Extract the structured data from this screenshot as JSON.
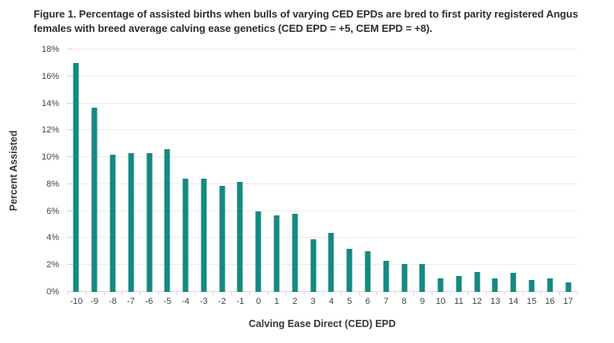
{
  "figure": {
    "caption": "Figure 1. Percentage of assisted births when bulls of varying CED EPDs are bred to first parity registered Angus females with breed average calving ease genetics (CED EPD = +5, CEM EPD = +8)."
  },
  "chart_data": {
    "type": "bar",
    "title": "Figure 1. Percentage of assisted births when bulls of varying CED EPDs are bred to first parity registered Angus females with breed average calving ease genetics (CED EPD = +5, CEM EPD = +8).",
    "xlabel": "Calving Ease Direct (CED) EPD",
    "ylabel": "Percent Assisted",
    "categories": [
      "-10",
      "-9",
      "-8",
      "-7",
      "-6",
      "-5",
      "-4",
      "-3",
      "-2",
      "-1",
      "0",
      "1",
      "2",
      "3",
      "4",
      "5",
      "6",
      "7",
      "8",
      "9",
      "10",
      "11",
      "12",
      "13",
      "14",
      "15",
      "16",
      "17"
    ],
    "values": [
      17.0,
      13.7,
      10.2,
      10.3,
      10.3,
      10.6,
      8.4,
      8.4,
      7.9,
      8.2,
      6.0,
      5.7,
      5.8,
      3.9,
      4.4,
      3.2,
      3.0,
      2.3,
      2.1,
      2.1,
      1.0,
      1.2,
      1.5,
      1.0,
      1.4,
      0.9,
      1.0,
      0.7
    ],
    "ylim": [
      0,
      18
    ],
    "y_tick_step": 2,
    "y_tick_labels": [
      "0%",
      "2%",
      "4%",
      "6%",
      "8%",
      "10%",
      "12%",
      "14%",
      "16%",
      "18%"
    ],
    "grid": true,
    "legend_position": "none"
  },
  "colors": {
    "bar": "#148a80",
    "title_text": "#2d2e33",
    "axis_text": "#40454b",
    "gridline": "#ebebeb",
    "baseline": "#dcdcdc",
    "tick": "#d6d6d6",
    "background": "#ffffff"
  }
}
